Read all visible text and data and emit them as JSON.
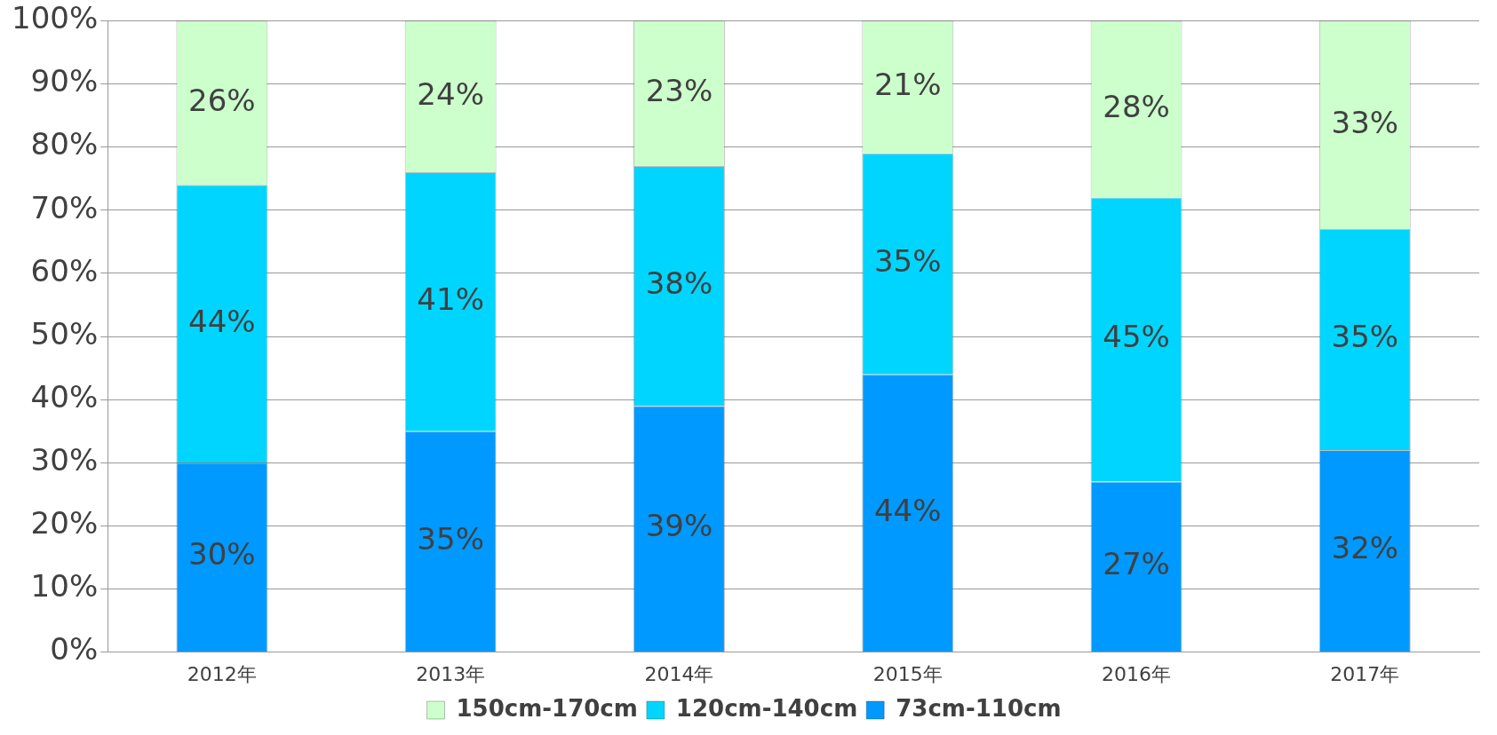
{
  "chart_data": {
    "type": "bar",
    "stacked": true,
    "categories": [
      "2012年",
      "2013年",
      "2014年",
      "2015年",
      "2016年",
      "2017年"
    ],
    "series": [
      {
        "name": "73cm-110cm",
        "color": "#0099ff",
        "values": [
          30,
          35,
          39,
          44,
          27,
          32
        ],
        "value_labels": [
          "30%",
          "35%",
          "39%",
          "44%",
          "27%",
          "32%"
        ]
      },
      {
        "name": "120cm-140cm",
        "color": "#00d5ff",
        "values": [
          44,
          41,
          38,
          35,
          45,
          35
        ],
        "value_labels": [
          "44%",
          "41%",
          "38%",
          "35%",
          "45%",
          "35%"
        ]
      },
      {
        "name": "150cm-170cm",
        "color": "#ccffcc",
        "values": [
          26,
          24,
          23,
          21,
          28,
          33
        ],
        "value_labels": [
          "26%",
          "24%",
          "23%",
          "21%",
          "28%",
          "33%"
        ]
      }
    ],
    "ylim": [
      0,
      100
    ],
    "yticks": [
      {
        "value": 0,
        "label": "0%"
      },
      {
        "value": 10,
        "label": "10%"
      },
      {
        "value": 20,
        "label": "20%"
      },
      {
        "value": 30,
        "label": "30%"
      },
      {
        "value": 40,
        "label": "40%"
      },
      {
        "value": 50,
        "label": "50%"
      },
      {
        "value": 60,
        "label": "60%"
      },
      {
        "value": 70,
        "label": "70%"
      },
      {
        "value": 80,
        "label": "80%"
      },
      {
        "value": 90,
        "label": "90%"
      },
      {
        "value": 100,
        "label": "100%"
      }
    ],
    "grid": "y",
    "legend": "bottom"
  }
}
